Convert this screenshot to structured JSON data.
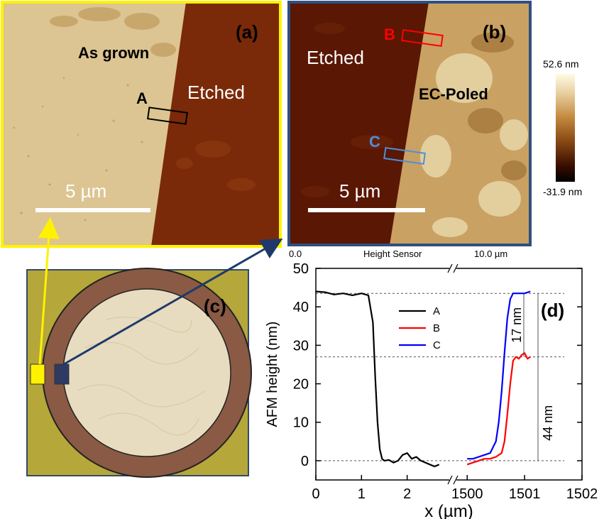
{
  "panel_a": {
    "label": "(a)",
    "region_left": "As grown",
    "region_right": "Etched",
    "box_label": "A",
    "scale_label": "5 µm"
  },
  "panel_b": {
    "label": "(b)",
    "region_left": "Etched",
    "region_right": "EC-Poled",
    "box_label_b": "B",
    "box_label_c": "C",
    "scale_label": "5 µm",
    "axis_start": "0.0",
    "axis_title": "Height Sensor",
    "axis_end": "10.0 µm"
  },
  "colorbar": {
    "max_label": "52.6 nm",
    "min_label": "-31.9 nm"
  },
  "panel_c": {
    "label": "(c)"
  },
  "colors": {
    "panel_a_border": "#fff200",
    "panel_b_border": "#2f4f7f",
    "series_a": "#000000",
    "series_b": "#ff0000",
    "series_c": "#0000ff",
    "sample_bg": "#b5a73a",
    "ring": "#8a5a44",
    "sample_center": "#e8dcc0",
    "etched_dark": "#7a2a08",
    "as_grown": "#dcc592"
  },
  "chart_data": {
    "type": "line",
    "label": "(d)",
    "xlabel": "x (µm)",
    "ylabel": "AFM height (nm)",
    "ylim": [
      -5,
      50
    ],
    "y_ticks": [
      0,
      10,
      20,
      30,
      40,
      50
    ],
    "x_axis_broken": true,
    "x_segments": [
      {
        "range": [
          0,
          3
        ],
        "ticks": [
          0,
          1,
          2
        ]
      },
      {
        "range": [
          1499.75,
          1502
        ],
        "ticks": [
          1500,
          1501,
          1502
        ]
      }
    ],
    "x_tick_labels": [
      "0",
      "1",
      "2",
      "1500",
      "1501",
      "1502"
    ],
    "legend_position": "top-center",
    "series": [
      {
        "name": "A",
        "x": [
          0,
          0.2,
          0.4,
          0.6,
          0.8,
          1.0,
          1.15,
          1.25,
          1.3,
          1.35,
          1.4,
          1.45,
          1.5,
          1.6,
          1.7,
          1.8,
          1.9,
          2.0,
          2.1,
          2.2,
          2.3,
          2.4,
          2.5,
          2.6,
          2.7
        ],
        "y": [
          44,
          43.8,
          43.2,
          43.5,
          43,
          43.5,
          43,
          36,
          22,
          10,
          3,
          0.5,
          0,
          0.2,
          -0.5,
          0,
          1.5,
          2,
          0.5,
          1,
          0,
          -0.5,
          -1,
          -1.5,
          -1
        ]
      },
      {
        "name": "B",
        "x": [
          1500,
          1500.1,
          1500.2,
          1500.3,
          1500.4,
          1500.5,
          1500.6,
          1500.65,
          1500.7,
          1500.75,
          1500.8,
          1500.85,
          1500.9,
          1500.95,
          1501.0,
          1501.05,
          1501.1
        ],
        "y": [
          -1,
          -0.5,
          0,
          0.5,
          0.5,
          1,
          2,
          5,
          12,
          20,
          26,
          27,
          26.5,
          27.5,
          28,
          26.5,
          27
        ]
      },
      {
        "name": "C",
        "x": [
          1500,
          1500.1,
          1500.2,
          1500.3,
          1500.4,
          1500.5,
          1500.55,
          1500.6,
          1500.65,
          1500.7,
          1500.75,
          1500.8,
          1500.9,
          1501.0,
          1501.1
        ],
        "y": [
          0.5,
          0.5,
          1,
          1.5,
          2,
          5,
          10,
          18,
          28,
          37,
          42,
          43.5,
          43.5,
          43.5,
          44
        ]
      }
    ],
    "reference_lines_y": [
      43.5,
      27,
      0
    ],
    "annotations": [
      "17 nm",
      "44 nm"
    ]
  }
}
